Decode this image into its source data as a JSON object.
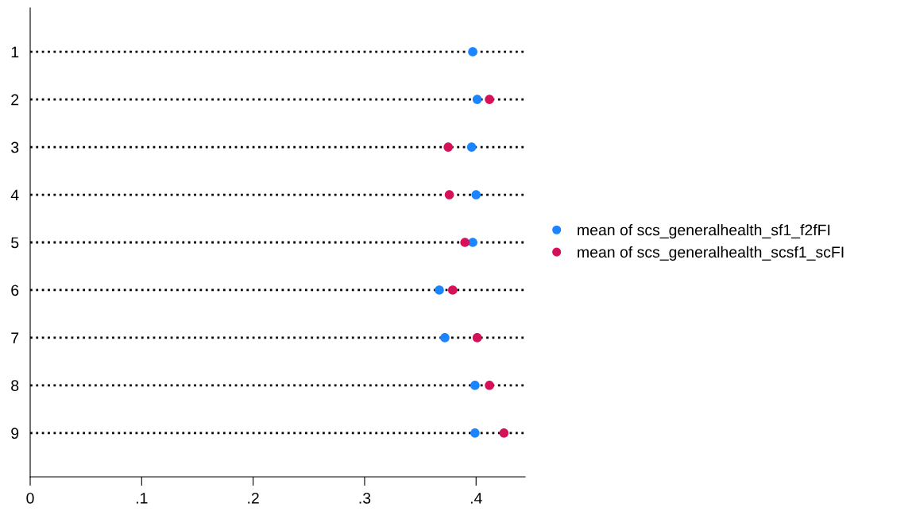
{
  "chart_data": {
    "type": "scatter",
    "orientation": "horizontal",
    "categories": [
      "1",
      "2",
      "3",
      "4",
      "5",
      "6",
      "7",
      "8",
      "9"
    ],
    "series": [
      {
        "name": "mean of scs_generalhealth_sf1_f2fFI",
        "color": "#1a85ff",
        "values": [
          0.397,
          0.401,
          0.396,
          0.4,
          0.397,
          0.367,
          0.372,
          0.399,
          0.399
        ]
      },
      {
        "name": "mean of scs_generalhealth_scsf1_scFI",
        "color": "#d41159",
        "values": [
          null,
          0.412,
          0.375,
          0.376,
          0.39,
          0.379,
          0.401,
          0.412,
          0.425
        ]
      }
    ],
    "xlim": [
      0,
      0.444
    ],
    "xticks": [
      0,
      {
        "value": 0.1,
        "label": ".1"
      },
      {
        "value": 0.2,
        "label": ".2"
      },
      {
        "value": 0.3,
        "label": ".3"
      },
      {
        "value": 0.4,
        "label": ".4"
      }
    ],
    "grid": "y",
    "line_style": "dotted",
    "marker": "circle",
    "legend": "right"
  }
}
